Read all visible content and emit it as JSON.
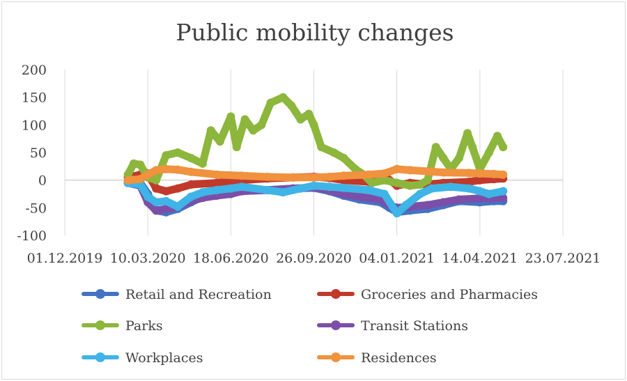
{
  "chart_data": {
    "type": "line",
    "title": "Public mobility changes",
    "xlabel": "",
    "ylabel": "",
    "x_tick_labels": [
      "01.12.2019",
      "10.03.2020",
      "18.06.2020",
      "26.09.2020",
      "04.01.2021",
      "14.04.2021",
      "23.07.2021"
    ],
    "y_tick_labels": [
      "-100",
      "-50",
      "0",
      "50",
      "100",
      "150",
      "200"
    ],
    "ylim": [
      -100,
      200
    ],
    "xlim": [
      "2019-12-01",
      "2021-07-23"
    ],
    "grid": "vertical",
    "legend_position": "bottom",
    "series": [
      {
        "name": "Retail and Recreation",
        "color": "#4472c4",
        "points": [
          [
            "2020-02-15",
            -2
          ],
          [
            "2020-03-01",
            -5
          ],
          [
            "2020-03-10",
            -25
          ],
          [
            "2020-03-20",
            -55
          ],
          [
            "2020-04-01",
            -58
          ],
          [
            "2020-04-15",
            -52
          ],
          [
            "2020-05-01",
            -40
          ],
          [
            "2020-05-15",
            -30
          ],
          [
            "2020-06-01",
            -25
          ],
          [
            "2020-06-18",
            -22
          ],
          [
            "2020-07-01",
            -20
          ],
          [
            "2020-08-01",
            -18
          ],
          [
            "2020-09-01",
            -15
          ],
          [
            "2020-09-26",
            -14
          ],
          [
            "2020-10-15",
            -20
          ],
          [
            "2020-11-01",
            -28
          ],
          [
            "2020-11-20",
            -35
          ],
          [
            "2020-12-15",
            -40
          ],
          [
            "2020-12-26",
            -50
          ],
          [
            "2021-01-04",
            -58
          ],
          [
            "2021-01-20",
            -55
          ],
          [
            "2021-02-10",
            -52
          ],
          [
            "2021-03-01",
            -45
          ],
          [
            "2021-03-20",
            -38
          ],
          [
            "2021-04-14",
            -40
          ],
          [
            "2021-05-01",
            -38
          ],
          [
            "2021-05-12",
            -38
          ]
        ]
      },
      {
        "name": "Groceries and Pharmacies",
        "color": "#c0392b",
        "points": [
          [
            "2020-02-15",
            5
          ],
          [
            "2020-03-01",
            10
          ],
          [
            "2020-03-10",
            12
          ],
          [
            "2020-03-20",
            -15
          ],
          [
            "2020-04-01",
            -20
          ],
          [
            "2020-04-15",
            -15
          ],
          [
            "2020-05-01",
            -8
          ],
          [
            "2020-06-01",
            -5
          ],
          [
            "2020-07-01",
            0
          ],
          [
            "2020-08-01",
            3
          ],
          [
            "2020-09-01",
            5
          ],
          [
            "2020-09-26",
            6
          ],
          [
            "2020-10-15",
            4
          ],
          [
            "2020-11-01",
            0
          ],
          [
            "2020-12-01",
            -3
          ],
          [
            "2020-12-20",
            8
          ],
          [
            "2021-01-04",
            -10
          ],
          [
            "2021-01-20",
            -5
          ],
          [
            "2021-02-10",
            -8
          ],
          [
            "2021-03-01",
            -5
          ],
          [
            "2021-04-01",
            -3
          ],
          [
            "2021-04-14",
            0
          ],
          [
            "2021-05-01",
            2
          ],
          [
            "2021-05-12",
            3
          ]
        ]
      },
      {
        "name": "Parks",
        "color": "#8db63c",
        "points": [
          [
            "2020-02-15",
            10
          ],
          [
            "2020-02-22",
            30
          ],
          [
            "2020-03-01",
            28
          ],
          [
            "2020-03-10",
            5
          ],
          [
            "2020-03-20",
            0
          ],
          [
            "2020-04-01",
            45
          ],
          [
            "2020-04-15",
            50
          ],
          [
            "2020-05-01",
            40
          ],
          [
            "2020-05-15",
            30
          ],
          [
            "2020-05-25",
            90
          ],
          [
            "2020-06-05",
            70
          ],
          [
            "2020-06-18",
            115
          ],
          [
            "2020-06-25",
            60
          ],
          [
            "2020-07-05",
            110
          ],
          [
            "2020-07-15",
            90
          ],
          [
            "2020-07-25",
            100
          ],
          [
            "2020-08-05",
            140
          ],
          [
            "2020-08-20",
            150
          ],
          [
            "2020-08-30",
            135
          ],
          [
            "2020-09-10",
            110
          ],
          [
            "2020-09-20",
            120
          ],
          [
            "2020-09-26",
            100
          ],
          [
            "2020-10-05",
            60
          ],
          [
            "2020-10-20",
            50
          ],
          [
            "2020-11-01",
            40
          ],
          [
            "2020-11-15",
            20
          ],
          [
            "2020-11-25",
            10
          ],
          [
            "2020-12-05",
            -5
          ],
          [
            "2020-12-20",
            0
          ],
          [
            "2021-01-04",
            -5
          ],
          [
            "2021-01-20",
            -10
          ],
          [
            "2021-02-01",
            -8
          ],
          [
            "2021-02-10",
            0
          ],
          [
            "2021-02-20",
            60
          ],
          [
            "2021-03-01",
            40
          ],
          [
            "2021-03-10",
            20
          ],
          [
            "2021-03-20",
            40
          ],
          [
            "2021-03-30",
            85
          ],
          [
            "2021-04-05",
            60
          ],
          [
            "2021-04-14",
            20
          ],
          [
            "2021-04-25",
            50
          ],
          [
            "2021-05-05",
            80
          ],
          [
            "2021-05-12",
            60
          ]
        ]
      },
      {
        "name": "Transit Stations",
        "color": "#7b4fa8",
        "points": [
          [
            "2020-02-15",
            -5
          ],
          [
            "2020-03-01",
            -10
          ],
          [
            "2020-03-10",
            -40
          ],
          [
            "2020-03-20",
            -55
          ],
          [
            "2020-04-01",
            -52
          ],
          [
            "2020-04-15",
            -48
          ],
          [
            "2020-05-01",
            -38
          ],
          [
            "2020-05-15",
            -32
          ],
          [
            "2020-06-01",
            -28
          ],
          [
            "2020-06-18",
            -25
          ],
          [
            "2020-07-01",
            -20
          ],
          [
            "2020-08-01",
            -18
          ],
          [
            "2020-09-01",
            -15
          ],
          [
            "2020-09-26",
            -13
          ],
          [
            "2020-10-15",
            -18
          ],
          [
            "2020-11-01",
            -25
          ],
          [
            "2020-11-20",
            -30
          ],
          [
            "2020-12-15",
            -35
          ],
          [
            "2020-12-26",
            -45
          ],
          [
            "2021-01-04",
            -50
          ],
          [
            "2021-01-20",
            -48
          ],
          [
            "2021-02-10",
            -45
          ],
          [
            "2021-03-01",
            -40
          ],
          [
            "2021-03-20",
            -35
          ],
          [
            "2021-04-14",
            -33
          ],
          [
            "2021-05-01",
            -32
          ],
          [
            "2021-05-12",
            -32
          ]
        ]
      },
      {
        "name": "Workplaces",
        "color": "#3fb4e6",
        "points": [
          [
            "2020-02-15",
            -5
          ],
          [
            "2020-03-01",
            -8
          ],
          [
            "2020-03-10",
            -30
          ],
          [
            "2020-03-20",
            -40
          ],
          [
            "2020-04-01",
            -38
          ],
          [
            "2020-04-15",
            -48
          ],
          [
            "2020-05-01",
            -30
          ],
          [
            "2020-05-15",
            -22
          ],
          [
            "2020-06-01",
            -18
          ],
          [
            "2020-06-18",
            -15
          ],
          [
            "2020-07-01",
            -12
          ],
          [
            "2020-08-01",
            -18
          ],
          [
            "2020-08-20",
            -22
          ],
          [
            "2020-09-10",
            -15
          ],
          [
            "2020-09-26",
            -10
          ],
          [
            "2020-10-15",
            -12
          ],
          [
            "2020-11-01",
            -14
          ],
          [
            "2020-12-01",
            -18
          ],
          [
            "2020-12-20",
            -25
          ],
          [
            "2021-01-04",
            -60
          ],
          [
            "2021-01-15",
            -45
          ],
          [
            "2021-02-01",
            -25
          ],
          [
            "2021-02-15",
            -15
          ],
          [
            "2021-03-10",
            -12
          ],
          [
            "2021-04-01",
            -15
          ],
          [
            "2021-04-14",
            -20
          ],
          [
            "2021-04-25",
            -25
          ],
          [
            "2021-05-12",
            -20
          ]
        ]
      },
      {
        "name": "Residences",
        "color": "#f0923e",
        "points": [
          [
            "2020-02-15",
            0
          ],
          [
            "2020-03-01",
            2
          ],
          [
            "2020-03-10",
            10
          ],
          [
            "2020-03-20",
            18
          ],
          [
            "2020-04-01",
            20
          ],
          [
            "2020-04-15",
            19
          ],
          [
            "2020-05-01",
            15
          ],
          [
            "2020-06-01",
            10
          ],
          [
            "2020-07-01",
            8
          ],
          [
            "2020-08-01",
            6
          ],
          [
            "2020-09-01",
            5
          ],
          [
            "2020-09-26",
            5
          ],
          [
            "2020-10-15",
            6
          ],
          [
            "2020-11-01",
            8
          ],
          [
            "2020-12-01",
            10
          ],
          [
            "2020-12-20",
            12
          ],
          [
            "2021-01-04",
            20
          ],
          [
            "2021-01-20",
            18
          ],
          [
            "2021-02-10",
            16
          ],
          [
            "2021-03-01",
            14
          ],
          [
            "2021-04-01",
            13
          ],
          [
            "2021-04-14",
            12
          ],
          [
            "2021-05-01",
            11
          ],
          [
            "2021-05-12",
            10
          ]
        ]
      }
    ]
  }
}
